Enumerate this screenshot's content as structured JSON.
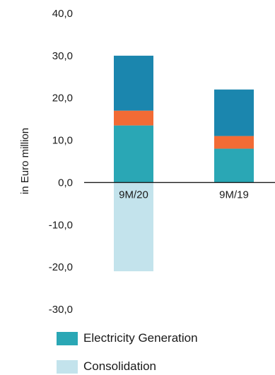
{
  "chart_data": {
    "type": "bar",
    "stacked": true,
    "categories": [
      "9M/20",
      "9M/19"
    ],
    "series": [
      {
        "name": "Electricity Generation",
        "color": "#2aa7b5",
        "values": [
          13.5,
          8.0
        ]
      },
      {
        "name": "",
        "color": "#f26b35",
        "values": [
          3.5,
          3.0
        ]
      },
      {
        "name": "",
        "color": "#1b86ae",
        "values": [
          13.0,
          11.0
        ]
      },
      {
        "name": "Consolidation",
        "color": "#c3e3ec",
        "values": [
          -21.0,
          0
        ]
      }
    ],
    "ylabel": "in Euro million",
    "ylim": [
      -30,
      40
    ],
    "yticks": [
      40,
      30,
      20,
      10,
      0,
      -10,
      -20,
      -30
    ],
    "ytick_labels": [
      "40,0",
      "30,0",
      "20,0",
      "10,0",
      "0,0",
      "-10,0",
      "-20,0",
      "-30,0"
    ],
    "grid": false,
    "legend_position": "bottom"
  },
  "legend": [
    {
      "label": "Electricity Generation",
      "color": "#2aa7b5"
    },
    {
      "label": "Consolidation",
      "color": "#c3e3ec"
    }
  ]
}
